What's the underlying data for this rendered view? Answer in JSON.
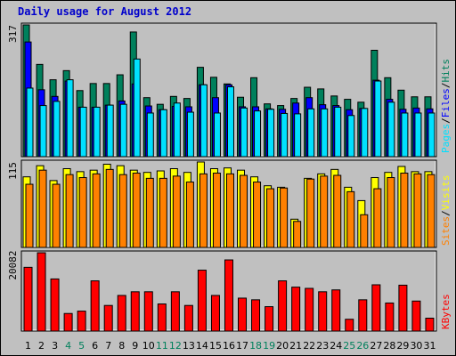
{
  "title": "Daily usage for August 2012",
  "colors": {
    "hits": "#00805c",
    "files": "#0000ff",
    "pages": "#00e0ff",
    "visits": "#ffff00",
    "sites": "#ff8000",
    "kbytes": "#ff0000",
    "weekday_label": "#000000",
    "weekend_label": "#00805c",
    "panel_bg": "#c0c0c0"
  },
  "chart_data": [
    {
      "type": "bar",
      "panel": "hits-files-pages",
      "ymax_label": "317",
      "ylim": [
        0,
        317
      ],
      "legend": [
        "Pages",
        "Files",
        "Hits"
      ],
      "legend_separator": "/",
      "categories": [
        "1",
        "2",
        "3",
        "4",
        "5",
        "6",
        "7",
        "8",
        "9",
        "10",
        "11",
        "12",
        "13",
        "14",
        "15",
        "16",
        "17",
        "18",
        "19",
        "20",
        "21",
        "22",
        "23",
        "24",
        "25",
        "26",
        "27",
        "28",
        "29",
        "30",
        "31"
      ],
      "weekend_days": [
        "4",
        "5",
        "11",
        "12",
        "18",
        "19",
        "25",
        "26"
      ],
      "series": [
        {
          "name": "Hits",
          "values": [
            317,
            222,
            185,
            207,
            159,
            176,
            176,
            197,
            300,
            142,
            126,
            145,
            140,
            215,
            191,
            175,
            143,
            190,
            127,
            123,
            140,
            167,
            163,
            146,
            138,
            131,
            256,
            190,
            160,
            144,
            144
          ]
        },
        {
          "name": "Files",
          "values": [
            276,
            161,
            145,
            182,
            119,
            119,
            124,
            134,
            175,
            122,
            113,
            121,
            120,
            173,
            142,
            173,
            120,
            120,
            115,
            114,
            129,
            142,
            125,
            123,
            113,
            116,
            184,
            138,
            114,
            117,
            115
          ]
        },
        {
          "name": "Pages",
          "values": [
            165,
            123,
            133,
            185,
            119,
            119,
            124,
            126,
            235,
            105,
            113,
            129,
            107,
            173,
            105,
            168,
            117,
            110,
            114,
            104,
            103,
            115,
            115,
            119,
            99,
            116,
            182,
            131,
            105,
            105,
            105
          ]
        }
      ]
    },
    {
      "type": "bar",
      "panel": "visits-sites",
      "ymax_label": "115",
      "ylim": [
        0,
        115
      ],
      "legend": [
        "Sites",
        "Visits"
      ],
      "legend_separator": "/",
      "categories": [
        "1",
        "2",
        "3",
        "4",
        "5",
        "6",
        "7",
        "8",
        "9",
        "10",
        "11",
        "12",
        "13",
        "14",
        "15",
        "16",
        "17",
        "18",
        "19",
        "20",
        "21",
        "22",
        "23",
        "24",
        "25",
        "26",
        "27",
        "28",
        "29",
        "30",
        "31"
      ],
      "series": [
        {
          "name": "Visits",
          "values": [
            95,
            110,
            90,
            106,
            102,
            104,
            112,
            110,
            104,
            101,
            103,
            106,
            101,
            115,
            106,
            107,
            104,
            95,
            83,
            81,
            38,
            93,
            99,
            105,
            81,
            63,
            94,
            101,
            109,
            102,
            102
          ]
        },
        {
          "name": "Sites",
          "values": [
            85,
            104,
            85,
            98,
            94,
            99,
            105,
            98,
            100,
            93,
            93,
            96,
            88,
            99,
            100,
            99,
            97,
            88,
            79,
            80,
            35,
            92,
            96,
            97,
            75,
            44,
            79,
            94,
            100,
            99,
            98
          ]
        }
      ]
    },
    {
      "type": "bar",
      "panel": "kbytes",
      "ymax_label": "20082",
      "ylim": [
        0,
        20082
      ],
      "legend": [
        "KBytes"
      ],
      "categories": [
        "1",
        "2",
        "3",
        "4",
        "5",
        "6",
        "7",
        "8",
        "9",
        "10",
        "11",
        "12",
        "13",
        "14",
        "15",
        "16",
        "17",
        "18",
        "19",
        "20",
        "21",
        "22",
        "23",
        "24",
        "25",
        "26",
        "27",
        "28",
        "29",
        "30",
        "31"
      ],
      "series": [
        {
          "name": "KBytes",
          "values": [
            16350,
            20082,
            13370,
            4510,
            5120,
            12880,
            6570,
            9140,
            10080,
            10080,
            6960,
            10080,
            6570,
            15620,
            9140,
            18250,
            8450,
            8020,
            6260,
            12880,
            11270,
            10950,
            10080,
            10560,
            3030,
            8020,
            11870,
            7200,
            11770,
            7700,
            3310
          ]
        }
      ]
    }
  ]
}
